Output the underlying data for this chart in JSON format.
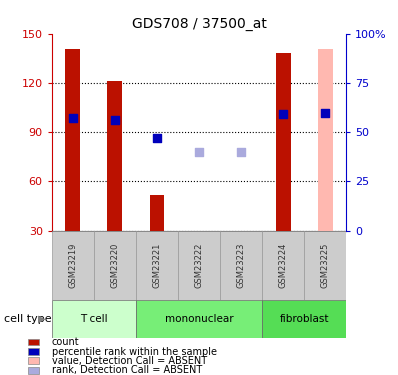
{
  "title": "GDS708 / 37500_at",
  "samples": [
    "GSM23219",
    "GSM23220",
    "GSM23221",
    "GSM23222",
    "GSM23223",
    "GSM23224",
    "GSM23225"
  ],
  "bar_values": [
    141,
    121,
    52,
    null,
    null,
    138,
    null
  ],
  "bar_absent_values": [
    null,
    null,
    null,
    null,
    null,
    null,
    141
  ],
  "bar_color": "#bb1100",
  "bar_absent_color": "#ffb8b0",
  "rank_values": [
    57,
    56,
    47,
    null,
    null,
    59,
    60
  ],
  "rank_absent_values": [
    null,
    null,
    null,
    40,
    40,
    null,
    null
  ],
  "rank_color": "#0000bb",
  "rank_absent_color": "#aaaadd",
  "count_base": 30,
  "ylim_left": [
    30,
    150
  ],
  "ylim_right": [
    0,
    100
  ],
  "yticks_left": [
    30,
    60,
    90,
    120,
    150
  ],
  "yticks_right": [
    0,
    25,
    50,
    75,
    100
  ],
  "ytick_labels_right": [
    "0",
    "25",
    "50",
    "75",
    "100%"
  ],
  "cell_types": [
    {
      "label": "T cell",
      "start": 0,
      "end": 2,
      "color": "#ccffcc"
    },
    {
      "label": "mononuclear",
      "start": 2,
      "end": 5,
      "color": "#77ee77"
    },
    {
      "label": "fibroblast",
      "start": 5,
      "end": 7,
      "color": "#55dd55"
    }
  ],
  "legend_items": [
    {
      "label": "count",
      "color": "#bb1100"
    },
    {
      "label": "percentile rank within the sample",
      "color": "#0000bb"
    },
    {
      "label": "value, Detection Call = ABSENT",
      "color": "#ffb8b0"
    },
    {
      "label": "rank, Detection Call = ABSENT",
      "color": "#aaaadd"
    }
  ],
  "bar_width": 0.35,
  "square_size": 40,
  "label_color_left": "#cc0000",
  "label_color_right": "#0000cc",
  "grid_color": "#000000",
  "sample_box_color": "#cccccc",
  "sample_text_color": "#333333",
  "cell_type_label": "cell type",
  "n_samples": 7,
  "figsize": [
    3.98,
    3.75
  ],
  "dpi": 100
}
